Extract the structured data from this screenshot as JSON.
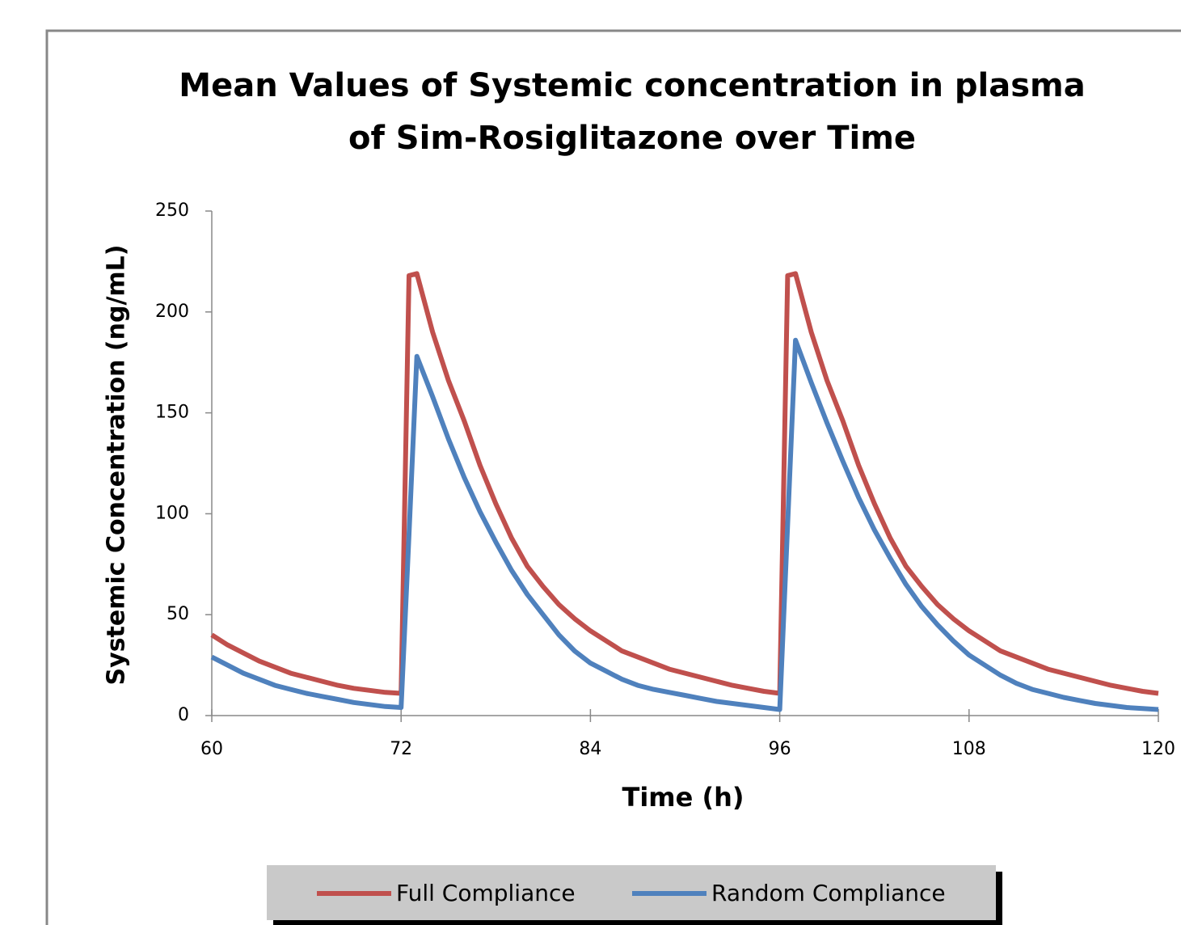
{
  "chart_data": {
    "type": "line",
    "title": [
      "Mean Values of Systemic concentration in plasma",
      "of Sim-Rosiglitazone over Time"
    ],
    "x_label": "Time (h)",
    "y_label": "Systemic Concentration (ng/mL)",
    "x": [
      60,
      61,
      62,
      63,
      64,
      65,
      66,
      67,
      68,
      69,
      70,
      71,
      72,
      72.5,
      73,
      74,
      75,
      76,
      77,
      78,
      79,
      80,
      81,
      82,
      83,
      84,
      85,
      86,
      87,
      88,
      89,
      90,
      91,
      92,
      93,
      94,
      95,
      96,
      96.5,
      97,
      98,
      99,
      100,
      101,
      102,
      103,
      104,
      105,
      106,
      107,
      108,
      109,
      110,
      111,
      112,
      113,
      114,
      115,
      116,
      117,
      118,
      119,
      120
    ],
    "series": [
      {
        "name": "Full Compliance",
        "color": "#c0504d",
        "values": [
          40,
          35,
          31,
          27,
          24,
          21,
          19,
          17,
          15,
          13.5,
          12.5,
          11.5,
          11,
          218,
          219,
          190,
          166,
          146,
          124,
          105,
          88,
          74,
          64,
          55,
          48,
          42,
          37,
          32,
          29,
          26,
          23,
          21,
          19,
          17,
          15,
          13.5,
          12,
          11,
          218,
          219,
          190,
          166,
          146,
          124,
          105,
          88,
          74,
          64,
          55,
          48,
          42,
          37,
          32,
          29,
          26,
          23,
          21,
          19,
          17,
          15,
          13.5,
          12,
          11
        ]
      },
      {
        "name": "Random Compliance",
        "color": "#4f81bd",
        "values": [
          29,
          25,
          21,
          18,
          15,
          13,
          11,
          9.5,
          8,
          6.5,
          5.5,
          4.5,
          4,
          90,
          178,
          158,
          137,
          118,
          101,
          86,
          72,
          60,
          50,
          40,
          32,
          26,
          22,
          18,
          15,
          13,
          11.5,
          10,
          8.5,
          7,
          6,
          5,
          4,
          3,
          95,
          186,
          165,
          145,
          126,
          108,
          92,
          78,
          65,
          54,
          45,
          37,
          30,
          25,
          20,
          16,
          13,
          11,
          9,
          7.5,
          6,
          5,
          4,
          3.5,
          3
        ]
      }
    ],
    "xlim": [
      60,
      120
    ],
    "xticks": [
      60,
      72,
      84,
      96,
      108,
      120
    ],
    "ylim": [
      0,
      250
    ],
    "yticks": [
      0,
      50,
      100,
      150,
      200,
      250
    ],
    "grid": false,
    "legend": "bottom"
  }
}
